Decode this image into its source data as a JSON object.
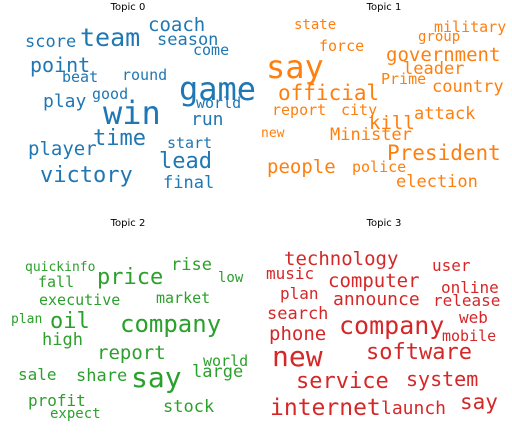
{
  "topics": [
    {
      "title": "Topic 0",
      "color": "#1f77b4",
      "words": [
        "game",
        "win",
        "team",
        "coach",
        "season",
        "score",
        "point",
        "beat",
        "round",
        "come",
        "good",
        "play",
        "world",
        "run",
        "time",
        "start",
        "player",
        "lead",
        "victory",
        "final"
      ]
    },
    {
      "title": "Topic 1",
      "color": "#ff7f0e",
      "words": [
        "state",
        "military",
        "say",
        "force",
        "group",
        "government",
        "leader",
        "official",
        "Prime",
        "country",
        "city",
        "report",
        "kill",
        "attack",
        "Minister",
        "new",
        "President",
        "people",
        "police",
        "election"
      ]
    },
    {
      "title": "Topic 2",
      "color": "#2ca02c",
      "words": [
        "quickinfo",
        "rise",
        "fall",
        "price",
        "low",
        "executive",
        "market",
        "plan",
        "oil",
        "company",
        "high",
        "report",
        "world",
        "sale",
        "share",
        "say",
        "large",
        "profit",
        "expect",
        "stock"
      ]
    },
    {
      "title": "Topic 3",
      "color": "#d62728",
      "words": [
        "technology",
        "music",
        "user",
        "computer",
        "online",
        "plan",
        "announce",
        "release",
        "search",
        "web",
        "company",
        "phone",
        "mobile",
        "new",
        "software",
        "service",
        "system",
        "internet",
        "launch",
        "say"
      ]
    }
  ]
}
